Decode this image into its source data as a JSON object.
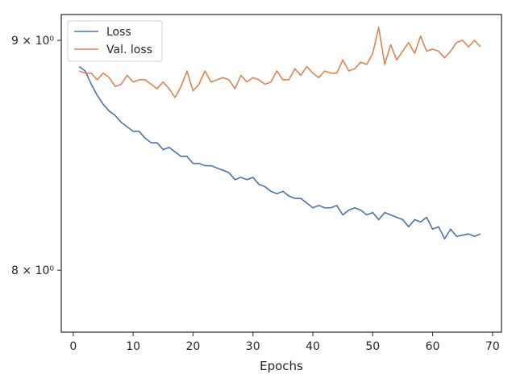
{
  "chart_data": {
    "type": "line",
    "title": "",
    "xlabel": "Epochs",
    "ylabel": "",
    "xlim": [
      -2,
      71.5
    ],
    "ylim": [
      7.75,
      9.12
    ],
    "y_scale": "log",
    "grid": false,
    "legend_position": "top-left",
    "x_ticks": [
      0,
      10,
      20,
      30,
      40,
      50,
      60,
      70
    ],
    "x_tick_labels": [
      "0",
      "10",
      "20",
      "30",
      "40",
      "50",
      "60",
      "70"
    ],
    "y_ticks": [
      8,
      9
    ],
    "y_tick_labels": [
      "8 × 10⁰",
      "9 × 10⁰"
    ],
    "x": [
      1,
      2,
      3,
      4,
      5,
      6,
      7,
      8,
      9,
      10,
      11,
      12,
      13,
      14,
      15,
      16,
      17,
      18,
      19,
      20,
      21,
      22,
      23,
      24,
      25,
      26,
      27,
      28,
      29,
      30,
      31,
      32,
      33,
      34,
      35,
      36,
      37,
      38,
      39,
      40,
      41,
      42,
      43,
      44,
      45,
      46,
      47,
      48,
      49,
      50,
      51,
      52,
      53,
      54,
      55,
      56,
      57,
      58,
      59,
      60,
      61,
      62,
      63,
      64,
      65,
      66,
      67,
      68
    ],
    "series": [
      {
        "name": "Loss",
        "color": "#4c72b0",
        "values": [
          8.88,
          8.86,
          8.8,
          8.75,
          8.71,
          8.68,
          8.66,
          8.63,
          8.61,
          8.59,
          8.59,
          8.56,
          8.54,
          8.54,
          8.51,
          8.52,
          8.5,
          8.48,
          8.48,
          8.45,
          8.45,
          8.44,
          8.44,
          8.43,
          8.42,
          8.41,
          8.38,
          8.39,
          8.38,
          8.39,
          8.36,
          8.35,
          8.33,
          8.32,
          8.33,
          8.31,
          8.3,
          8.3,
          8.28,
          8.26,
          8.27,
          8.26,
          8.26,
          8.27,
          8.23,
          8.25,
          8.26,
          8.25,
          8.23,
          8.24,
          8.21,
          8.24,
          8.23,
          8.22,
          8.21,
          8.18,
          8.21,
          8.2,
          8.22,
          8.17,
          8.18,
          8.13,
          8.17,
          8.14,
          8.145,
          8.15,
          8.14,
          8.15
        ]
      },
      {
        "name": "Val. loss",
        "color": "#dd8452",
        "values": [
          8.86,
          8.85,
          8.85,
          8.82,
          8.85,
          8.83,
          8.79,
          8.8,
          8.84,
          8.81,
          8.82,
          8.82,
          8.8,
          8.78,
          8.81,
          8.78,
          8.74,
          8.79,
          8.86,
          8.77,
          8.8,
          8.86,
          8.81,
          8.82,
          8.83,
          8.82,
          8.78,
          8.84,
          8.81,
          8.83,
          8.82,
          8.8,
          8.81,
          8.86,
          8.82,
          8.82,
          8.87,
          8.84,
          8.88,
          8.85,
          8.83,
          8.86,
          8.85,
          8.85,
          8.91,
          8.86,
          8.87,
          8.9,
          8.89,
          8.94,
          9.06,
          8.89,
          8.98,
          8.91,
          8.95,
          8.99,
          8.94,
          9.02,
          8.95,
          8.96,
          8.95,
          8.92,
          8.95,
          8.99,
          9.0,
          8.97,
          9.0,
          8.97
        ]
      }
    ]
  }
}
